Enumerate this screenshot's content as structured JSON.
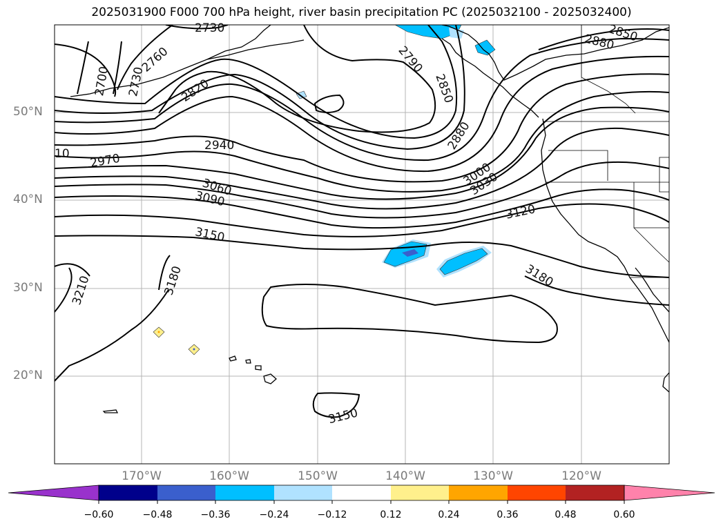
{
  "title": "2025031900 F000 700 hPa height, river basin precipitation PC (2025032100 - 2025032400)",
  "lat_labels": [
    "50°N",
    "40°N",
    "30°N",
    "20°N"
  ],
  "lon_labels": [
    "170°W",
    "160°W",
    "150°W",
    "140°W",
    "130°W",
    "120°W"
  ],
  "contour_labels": [
    "2730",
    "2760",
    "2700",
    "2730",
    "2820",
    "2790",
    "2850",
    "2850",
    "2880",
    "2880",
    "2940",
    "2970",
    "10",
    "3000",
    "3030",
    "3060",
    "3090",
    "3120",
    "3150",
    "3180",
    "3180",
    "3210",
    "3150"
  ],
  "colorbar": {
    "colors": [
      "#9932cc",
      "#00008b",
      "#3a5fcd",
      "#00bfff",
      "#b0e2ff",
      "#ffffff",
      "#fff08c",
      "#ffa500",
      "#ff4500",
      "#b22222",
      "#ff82ab"
    ],
    "tick_labels": [
      "−0.60",
      "−0.48",
      "−0.36",
      "−0.24",
      "−0.12",
      "0.12",
      "0.24",
      "0.36",
      "0.48",
      "0.60"
    ]
  }
}
